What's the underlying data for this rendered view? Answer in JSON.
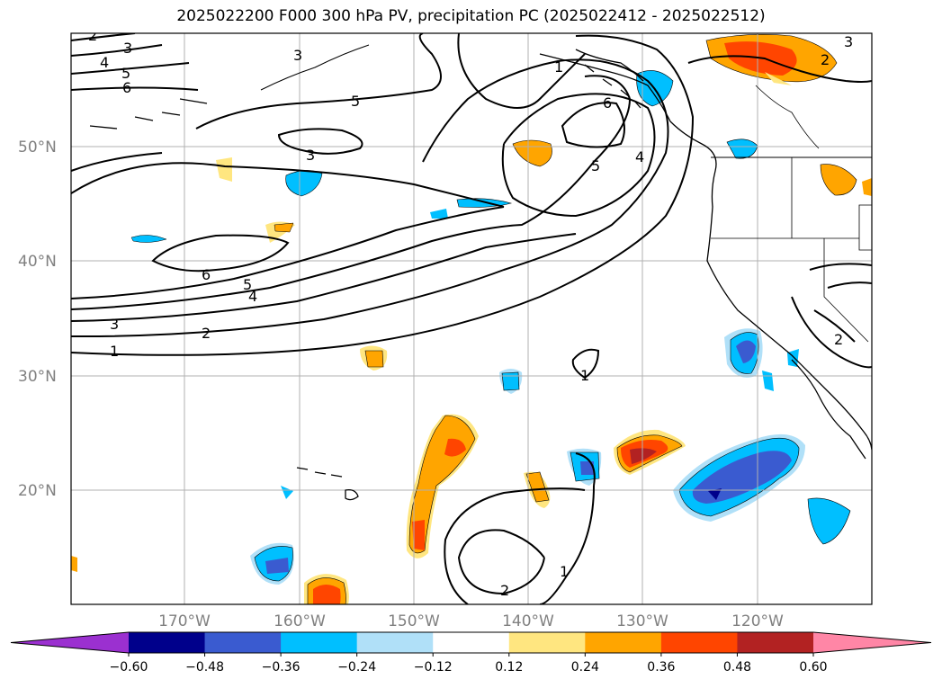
{
  "title": "2025022200 F000 300 hPa PV, precipitation PC (2025022412 - 2025022512)",
  "map": {
    "lat_labels": [
      "50°N",
      "40°N",
      "30°N",
      "20°N"
    ],
    "lon_labels": [
      "170°W",
      "160°W",
      "150°W",
      "140°W",
      "130°W",
      "120°W"
    ],
    "contour_labels": [
      "2",
      "3",
      "4",
      "5",
      "6",
      "3",
      "1",
      "6",
      "5",
      "4",
      "3",
      "5",
      "6",
      "5",
      "4",
      "3",
      "2",
      "1",
      "1",
      "1",
      "2",
      "2",
      "3",
      "2"
    ]
  },
  "colorbar": {
    "tick_labels": [
      "−0.60",
      "−0.48",
      "−0.36",
      "−0.24",
      "−0.12",
      "0.12",
      "0.24",
      "0.36",
      "0.48",
      "0.60"
    ],
    "colors": [
      "#9b30d0",
      "#00008b",
      "#3a5bd0",
      "#00bfff",
      "#b0e0f8",
      "#ffffff",
      "#ffe680",
      "#ffa500",
      "#ff4500",
      "#b22222",
      "#ff86a6"
    ]
  }
}
